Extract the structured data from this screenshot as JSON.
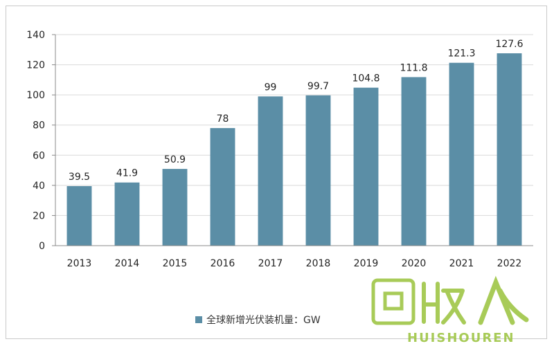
{
  "chart_data": {
    "type": "bar",
    "categories": [
      "2013",
      "2014",
      "2015",
      "2016",
      "2017",
      "2018",
      "2019",
      "2020",
      "2021",
      "2022"
    ],
    "series": [
      {
        "name": "全球新增光伏装机量：GW",
        "values": [
          39.5,
          41.9,
          50.9,
          78,
          99,
          99.7,
          104.8,
          111.8,
          121.3,
          127.6
        ],
        "color": "#5b8ea6"
      }
    ],
    "data_labels": [
      "39.5",
      "41.9",
      "50.9",
      "78",
      "99",
      "99.7",
      "104.8",
      "111.8",
      "121.3",
      "127.6"
    ],
    "title": "",
    "xlabel": "",
    "ylabel": "",
    "ylim": [
      0,
      140
    ],
    "yticks": [
      0,
      20,
      40,
      60,
      80,
      100,
      120,
      140
    ],
    "grid": true,
    "legend_position": "bottom-left"
  },
  "legend": {
    "label": "全球新增光伏装机量：GW"
  },
  "watermark": {
    "text": "HUISHOUREN",
    "logo_text": "回收人",
    "color": "#9ac23c"
  }
}
